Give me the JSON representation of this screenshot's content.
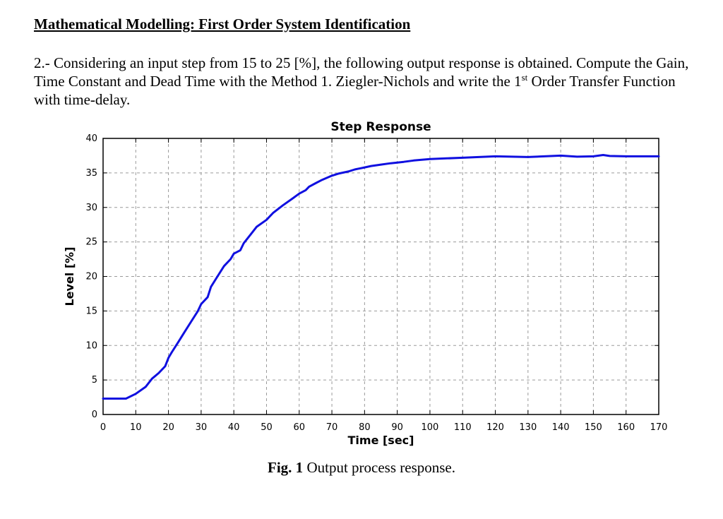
{
  "heading": "Mathematical Modelling: First Order System Identification",
  "problem": {
    "text_part1": "2.- Considering an input step from 15 to 25 [%], the following output response is obtained. Compute the Gain, Time Constant and Dead Time with the Method 1. Ziegler-Nichols and write the 1",
    "superscript": "st",
    "text_part2": " Order Transfer Function with time-delay."
  },
  "caption": {
    "label": "Fig. 1",
    "text": " Output process response."
  },
  "chart_data": {
    "type": "line",
    "title": "Step Response",
    "xlabel": "Time [sec]",
    "ylabel": "Level [%]",
    "xlim": [
      0,
      170
    ],
    "ylim": [
      0,
      40
    ],
    "xticks": [
      0,
      10,
      20,
      30,
      40,
      50,
      60,
      70,
      80,
      90,
      100,
      110,
      120,
      130,
      140,
      150,
      160,
      170
    ],
    "yticks": [
      0,
      5,
      10,
      15,
      20,
      25,
      30,
      35,
      40
    ],
    "grid": true,
    "line_color": "#1010e0",
    "series": [
      {
        "x": [
          0,
          7,
          10,
          13,
          15,
          17,
          19,
          20,
          21,
          23,
          25,
          27,
          29,
          30,
          32,
          33,
          35,
          37,
          39,
          40,
          42,
          43,
          45,
          47,
          50,
          52,
          55,
          58,
          60,
          62,
          63,
          65,
          67,
          70,
          72,
          75,
          77,
          80,
          82,
          85,
          88,
          92,
          95,
          100,
          105,
          110,
          115,
          120,
          125,
          130,
          135,
          140,
          145,
          150,
          153,
          155,
          160,
          170
        ],
        "y": [
          2.3,
          2.3,
          3.0,
          4.0,
          5.2,
          6.0,
          7.0,
          8.2,
          9.0,
          10.5,
          12.0,
          13.5,
          15.0,
          16.0,
          17.0,
          18.5,
          20.0,
          21.5,
          22.5,
          23.3,
          23.8,
          24.8,
          26.0,
          27.2,
          28.2,
          29.2,
          30.3,
          31.3,
          32.0,
          32.5,
          33.0,
          33.5,
          34.0,
          34.6,
          34.9,
          35.2,
          35.5,
          35.8,
          36.0,
          36.2,
          36.4,
          36.6,
          36.8,
          37.0,
          37.1,
          37.2,
          37.3,
          37.4,
          37.35,
          37.3,
          37.4,
          37.5,
          37.35,
          37.4,
          37.6,
          37.45,
          37.4,
          37.4
        ]
      }
    ]
  }
}
